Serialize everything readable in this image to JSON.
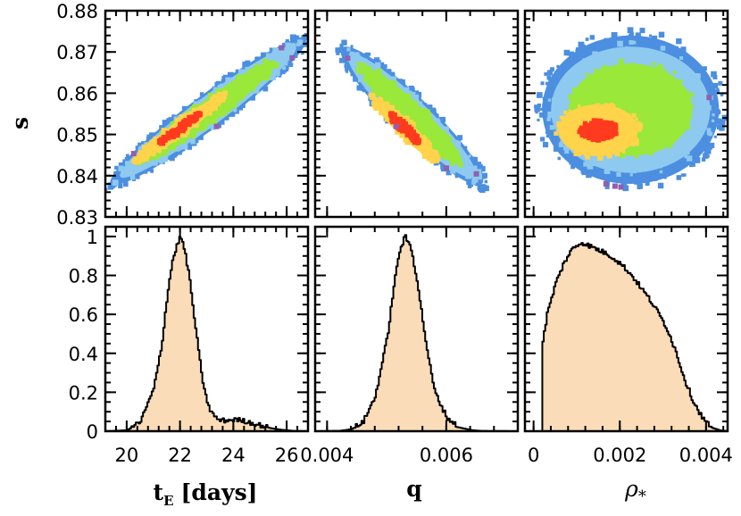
{
  "chart_data": [
    {
      "type": "scatter",
      "name": "s_vs_tE",
      "xlabel": "",
      "ylabel": "s",
      "xlim": [
        19.2,
        26.8
      ],
      "ylim": [
        0.83,
        0.88
      ],
      "xticks": [
        20,
        22,
        24,
        26
      ],
      "yticks": [
        0.83,
        0.84,
        0.85,
        0.86,
        0.87,
        0.88
      ],
      "ytick_labels": [
        "0.83",
        "0.84",
        "0.85",
        "0.86",
        "0.87",
        "0.88"
      ],
      "distribution": {
        "center": [
          22.0,
          0.8515
        ],
        "corr": "positive",
        "x_span": [
          19.4,
          26.7
        ],
        "y_span": [
          0.838,
          0.873
        ]
      },
      "contour_levels": [
        "1sigma",
        "2sigma",
        "3sigma",
        "4sigma",
        "5sigma"
      ],
      "level_colors": [
        "#ff3a1e",
        "#ffd34a",
        "#99e83a",
        "#8ec9f0",
        "#4c8fe0"
      ]
    },
    {
      "type": "scatter",
      "name": "s_vs_q",
      "xlabel": "",
      "ylabel": "",
      "xlim": [
        0.0038,
        0.0072
      ],
      "ylim": [
        0.83,
        0.88
      ],
      "xticks": [
        0.004,
        0.006
      ],
      "distribution": {
        "center": [
          0.0053,
          0.8515
        ],
        "corr": "negative",
        "x_span": [
          0.00425,
          0.0066
        ],
        "y_span": [
          0.838,
          0.871
        ]
      },
      "contour_levels": [
        "1sigma",
        "2sigma",
        "3sigma",
        "4sigma",
        "5sigma"
      ],
      "level_colors": [
        "#ff3a1e",
        "#ffd34a",
        "#99e83a",
        "#8ec9f0",
        "#4c8fe0"
      ]
    },
    {
      "type": "scatter",
      "name": "s_vs_rho",
      "xlabel": "",
      "ylabel": "",
      "xlim": [
        -0.0002,
        0.0045
      ],
      "ylim": [
        0.83,
        0.88
      ],
      "xticks": [
        0,
        0.002,
        0.004
      ],
      "distribution": {
        "center": [
          0.0015,
          0.851
        ],
        "corr": "none",
        "x_span": [
          0.0002,
          0.0043
        ],
        "y_span": [
          0.838,
          0.874
        ]
      },
      "contour_levels": [
        "1sigma",
        "2sigma",
        "3sigma",
        "4sigma",
        "5sigma"
      ],
      "level_colors": [
        "#ff3a1e",
        "#ffd34a",
        "#99e83a",
        "#8ec9f0",
        "#4c8fe0"
      ]
    },
    {
      "type": "area",
      "name": "hist_tE",
      "xlabel": "t_E [days]",
      "ylabel": "",
      "xlim": [
        19.2,
        26.8
      ],
      "ylim": [
        0,
        1.05
      ],
      "xticks": [
        20,
        22,
        24,
        26
      ],
      "xtick_labels": [
        "20",
        "22",
        "24",
        "26"
      ],
      "yticks": [
        0,
        0.2,
        0.4,
        0.6,
        0.8,
        1
      ],
      "ytick_labels": [
        "0",
        "0.2",
        "0.4",
        "0.6",
        "0.8",
        "1"
      ],
      "x": [
        19.2,
        20.0,
        20.5,
        21.0,
        21.3,
        21.5,
        21.7,
        21.9,
        22.0,
        22.1,
        22.3,
        22.5,
        22.7,
        22.9,
        23.1,
        23.3,
        23.5,
        23.7,
        24.0,
        24.3,
        24.6,
        25.0,
        25.4,
        25.8,
        26.2,
        26.8
      ],
      "values": [
        0.0,
        0.005,
        0.05,
        0.22,
        0.45,
        0.7,
        0.88,
        0.97,
        1.0,
        0.96,
        0.82,
        0.6,
        0.38,
        0.2,
        0.11,
        0.07,
        0.055,
        0.055,
        0.06,
        0.055,
        0.045,
        0.03,
        0.015,
        0.007,
        0.002,
        0.0
      ]
    },
    {
      "type": "area",
      "name": "hist_q",
      "xlabel": "q",
      "ylabel": "",
      "xlim": [
        0.0038,
        0.0072
      ],
      "ylim": [
        0,
        1.05
      ],
      "xticks": [
        0.004,
        0.006
      ],
      "xtick_labels": [
        "0.004",
        "0.006"
      ],
      "x": [
        0.0038,
        0.0042,
        0.0044,
        0.0046,
        0.0048,
        0.005,
        0.0051,
        0.0052,
        0.0053,
        0.0054,
        0.0055,
        0.0056,
        0.0057,
        0.0058,
        0.006,
        0.0062,
        0.0064,
        0.0066,
        0.0072
      ],
      "values": [
        0.0,
        0.002,
        0.01,
        0.05,
        0.18,
        0.48,
        0.72,
        0.92,
        1.0,
        0.94,
        0.78,
        0.56,
        0.36,
        0.2,
        0.07,
        0.02,
        0.006,
        0.001,
        0.0
      ]
    },
    {
      "type": "area",
      "name": "hist_rho",
      "xlabel": "ρ*",
      "ylabel": "",
      "xlim": [
        -0.0002,
        0.0045
      ],
      "ylim": [
        0,
        1.05
      ],
      "xticks": [
        0,
        0.002,
        0.004
      ],
      "xtick_labels": [
        "0",
        "0.002",
        "0.004"
      ],
      "x": [
        -0.0002,
        0.00019,
        0.0002,
        0.0003,
        0.0005,
        0.0007,
        0.0009,
        0.0011,
        0.0013,
        0.0015,
        0.0017,
        0.0019,
        0.0021,
        0.0023,
        0.0025,
        0.0027,
        0.0029,
        0.0031,
        0.0033,
        0.0035,
        0.0037,
        0.0039,
        0.0041,
        0.0043,
        0.0045
      ],
      "values": [
        0.0,
        0.0,
        0.46,
        0.6,
        0.76,
        0.87,
        0.94,
        0.97,
        0.95,
        0.93,
        0.91,
        0.88,
        0.84,
        0.79,
        0.73,
        0.67,
        0.6,
        0.52,
        0.4,
        0.26,
        0.15,
        0.07,
        0.02,
        0.005,
        0.0
      ]
    }
  ],
  "labels": {
    "y_top": "s",
    "x_tE_main": "t",
    "x_tE_sub": "E",
    "x_tE_unit": "[days]",
    "x_q": "q",
    "x_rho_main": "ρ",
    "x_rho_sub": "*"
  }
}
